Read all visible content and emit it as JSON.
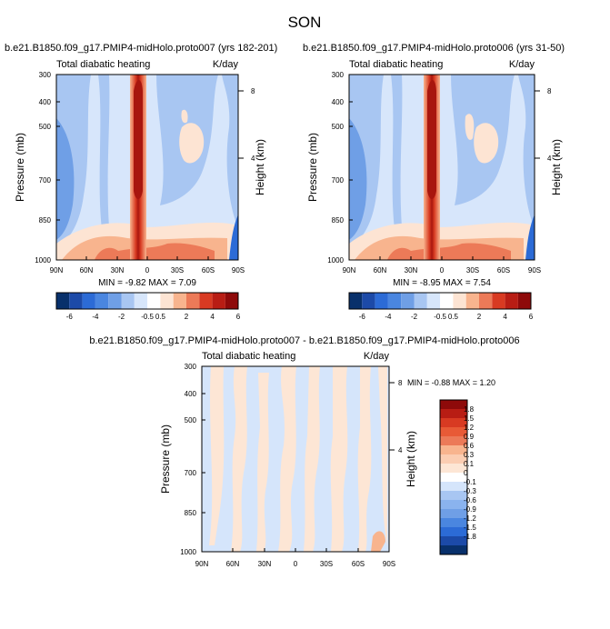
{
  "page_title": "SON",
  "colors": {
    "field_blues": [
      "#2c6bd6",
      "#6f9fe6",
      "#a8c6f2",
      "#d7e6fb"
    ],
    "field_reds": [
      "#fde4d3",
      "#f8b48e",
      "#ec7a58",
      "#d83a22",
      "#a8160e"
    ],
    "diff_blue": "#d5e5fb",
    "diff_red": "#fde6d5"
  },
  "chart_data": [
    {
      "type": "heatmap",
      "title": "b.e21.B1850.f09_g17.PMIP4-midHolo.proto007 (yrs 182-201)",
      "left_label": "Total diabatic heating",
      "right_label": "K/day",
      "ylabel": "Pressure (mb)",
      "y2label": "Height (km)",
      "x_ticks": [
        "90N",
        "60N",
        "30N",
        "0",
        "30S",
        "60S",
        "90S"
      ],
      "y_ticks": [
        "300",
        "400",
        "500",
        "700",
        "850",
        "1000"
      ],
      "y2_ticks": [
        "8",
        "4"
      ],
      "stats": "MIN =  -9.82  MAX =   7.09",
      "colorbar_labels": [
        "-6",
        "-4",
        "-2",
        "-0.5",
        "0.5",
        "2",
        "4",
        "6"
      ]
    },
    {
      "type": "heatmap",
      "title": "b.e21.B1850.f09_g17.PMIP4-midHolo.proto006 (yrs 31-50)",
      "left_label": "Total diabatic heating",
      "right_label": "K/day",
      "ylabel": "Pressure (mb)",
      "y2label": "Height (km)",
      "x_ticks": [
        "90N",
        "60N",
        "30N",
        "0",
        "30S",
        "60S",
        "90S"
      ],
      "y_ticks": [
        "300",
        "400",
        "500",
        "700",
        "850",
        "1000"
      ],
      "y2_ticks": [
        "8",
        "4"
      ],
      "stats": "MIN =  -8.95  MAX =   7.54",
      "colorbar_labels": [
        "-6",
        "-4",
        "-2",
        "-0.5",
        "0.5",
        "2",
        "4",
        "6"
      ]
    },
    {
      "type": "heatmap",
      "title": "b.e21.B1850.f09_g17.PMIP4-midHolo.proto007 - b.e21.B1850.f09_g17.PMIP4-midHolo.proto006",
      "left_label": "Total diabatic heating",
      "right_label": "K/day",
      "ylabel": "Pressure (mb)",
      "y2label": "Height (km)",
      "x_ticks": [
        "90N",
        "60N",
        "30N",
        "0",
        "30S",
        "60S",
        "90S"
      ],
      "y_ticks": [
        "300",
        "400",
        "500",
        "700",
        "850",
        "1000"
      ],
      "y2_ticks": [
        "8",
        "4"
      ],
      "stats": "MIN =  -0.88  MAX =   1.20",
      "colorbar_labels": [
        "1.8",
        "1.5",
        "1.2",
        "0.9",
        "0.6",
        "0.3",
        "0.1",
        "0",
        "-0.1",
        "-0.3",
        "-0.6",
        "-0.9",
        "-1.2",
        "-1.5",
        "-1.8"
      ]
    }
  ]
}
